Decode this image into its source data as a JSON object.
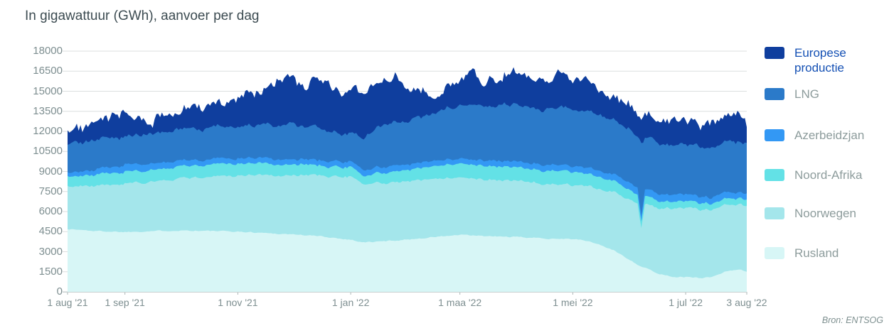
{
  "chart_data": {
    "type": "area",
    "stacked": true,
    "title": "In gigawattuur (GWh), aanvoer per dag",
    "source": "Bron: ENTSOG",
    "unit": "GWh",
    "grid": true,
    "legend_position": "right",
    "y_axis": {
      "min": 0,
      "max": 18000,
      "step": 1500
    },
    "x_axis": {
      "range_days": [
        0,
        367
      ],
      "ticks": [
        {
          "day": 0,
          "label": "1 aug '21"
        },
        {
          "day": 31,
          "label": "1 sep '21"
        },
        {
          "day": 92,
          "label": "1 nov '21"
        },
        {
          "day": 153,
          "label": "1 jan '22"
        },
        {
          "day": 212,
          "label": "1 maa '22"
        },
        {
          "day": 273,
          "label": "1 mei '22"
        },
        {
          "day": 334,
          "label": "1 jul '22"
        },
        {
          "day": 367,
          "label": "3 aug '22"
        }
      ]
    },
    "anchor_days": [
      0,
      15,
      31,
      46,
      61,
      76,
      92,
      107,
      113,
      122,
      137,
      153,
      160,
      168,
      177,
      183,
      198,
      212,
      220,
      227,
      242,
      250,
      257,
      266,
      273,
      281,
      288,
      295,
      302,
      308,
      310,
      312,
      318,
      326,
      334,
      341,
      348,
      356,
      362,
      367
    ],
    "series_note": "values in GWh per day, stack order bottom-to-top; estimated from pixels at anchor dates",
    "series": [
      {
        "name": "Rusland",
        "color": "#d7f6f6",
        "legend_text_color": "#8d9c9c",
        "jitter": 45,
        "values": [
          4700,
          4550,
          4480,
          4550,
          4600,
          4550,
          4500,
          4400,
          4350,
          4300,
          4150,
          3900,
          3700,
          3750,
          3850,
          3900,
          4100,
          4250,
          4200,
          4150,
          4100,
          4050,
          4000,
          3980,
          3950,
          3800,
          3500,
          3100,
          2550,
          2050,
          1900,
          1800,
          1400,
          1150,
          1100,
          1050,
          1100,
          1550,
          1700,
          1500
        ]
      },
      {
        "name": "Noorwegen",
        "color": "#a4e6eb",
        "legend_text_color": "#8d9c9c",
        "jitter": 90,
        "values": [
          3200,
          3400,
          3620,
          3700,
          3900,
          4050,
          4200,
          4300,
          4350,
          4400,
          4550,
          4700,
          4400,
          4350,
          4400,
          4400,
          4350,
          4300,
          4300,
          4250,
          4200,
          4150,
          4100,
          4080,
          4050,
          4100,
          4200,
          4300,
          4500,
          4650,
          2900,
          4720,
          4900,
          5100,
          5170,
          5100,
          5050,
          4950,
          4900,
          4900
        ]
      },
      {
        "name": "Noord-Afrika",
        "color": "#63e1e6",
        "legend_text_color": "#8d9c9c",
        "jitter": 45,
        "values": [
          750,
          800,
          900,
          900,
          900,
          900,
          900,
          850,
          850,
          800,
          750,
          700,
          650,
          700,
          800,
          850,
          950,
          1050,
          1050,
          1050,
          1000,
          1000,
          1000,
          1000,
          1000,
          950,
          900,
          800,
          700,
          620,
          480,
          600,
          550,
          540,
          530,
          500,
          480,
          460,
          450,
          450
        ]
      },
      {
        "name": "Azerbeidzjan",
        "color": "#3398f4",
        "legend_text_color": "#8d9c9c",
        "jitter": 40,
        "values": [
          300,
          400,
          520,
          480,
          420,
          400,
          380,
          390,
          400,
          400,
          400,
          400,
          420,
          430,
          430,
          420,
          400,
          370,
          380,
          400,
          430,
          440,
          450,
          450,
          450,
          460,
          470,
          480,
          500,
          505,
          400,
          505,
          520,
          520,
          520,
          500,
          490,
          480,
          470,
          470
        ]
      },
      {
        "name": "LNG",
        "color": "#2b7ac9",
        "legend_text_color": "#8d9c9c",
        "jitter": 150,
        "values": [
          2100,
          2150,
          2210,
          2250,
          2300,
          2350,
          2420,
          2500,
          2600,
          2700,
          2400,
          2030,
          2500,
          2900,
          3300,
          3200,
          3500,
          4030,
          4100,
          4050,
          4200,
          4250,
          4200,
          4230,
          4250,
          4300,
          4200,
          4100,
          4000,
          3950,
          5500,
          3880,
          3800,
          3750,
          3720,
          3700,
          3750,
          3800,
          3800,
          3780
        ]
      },
      {
        "name": "Europese productie",
        "color": "#0f3e9e",
        "legend_text_color": "#1450b4",
        "jitter": 380,
        "values": [
          1350,
          1000,
          1720,
          1100,
          1480,
          1750,
          2000,
          2760,
          3500,
          3200,
          3350,
          3070,
          3530,
          3270,
          3620,
          2730,
          1500,
          2000,
          2270,
          1800,
          2470,
          2010,
          2150,
          2460,
          2100,
          2390,
          1730,
          1720,
          1750,
          1770,
          1900,
          1750,
          1630,
          1940,
          1760,
          1550,
          1830,
          1760,
          1980,
          1200
        ]
      }
    ],
    "legend_order_top_to_bottom": [
      "Europese productie",
      "LNG",
      "Azerbeidzjan",
      "Noord-Afrika",
      "Noorwegen",
      "Rusland"
    ],
    "colors": {
      "title_text": "#3d4c52",
      "axis_text": "#7d8e90",
      "gridline": "#dcdfdf",
      "axis_line": "#c7d0d0",
      "tick_mark": "#a9b4b4"
    }
  }
}
